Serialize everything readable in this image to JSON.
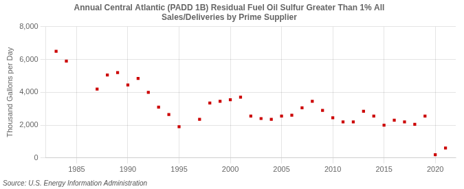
{
  "chart_data": {
    "type": "scatter",
    "title": "Annual Central Atlantic (PADD 1B) Residual Fuel Oil Sulfur Greater Than 1% All\nSales/Deliveries by Prime Supplier",
    "ylabel": "Thousand Gallons per Day",
    "annotation": "Source: U.S. Energy Information Administration",
    "x": [
      1983,
      1984,
      1987,
      1988,
      1989,
      1990,
      1991,
      1992,
      1993,
      1994,
      1995,
      1997,
      1998,
      1999,
      2000,
      2001,
      2002,
      2003,
      2004,
      2005,
      2006,
      2007,
      2008,
      2009,
      2010,
      2011,
      2012,
      2013,
      2014,
      2015,
      2016,
      2017,
      2018,
      2019,
      2020,
      2021
    ],
    "values": [
      6500,
      5900,
      4200,
      5050,
      5200,
      4450,
      4850,
      4000,
      3100,
      2650,
      1900,
      2350,
      3350,
      3450,
      3550,
      3700,
      2550,
      2400,
      2350,
      2550,
      2600,
      3050,
      3450,
      2900,
      2450,
      2200,
      2200,
      2850,
      2550,
      2000,
      2300,
      2200,
      2050,
      2550,
      200,
      600
    ],
    "color": "#cc0000",
    "marker": "square",
    "xlim": [
      1982,
      2022
    ],
    "xticks": [
      1985,
      1990,
      1995,
      2000,
      2005,
      2010,
      2015,
      2020
    ],
    "ylim": [
      0,
      8000
    ],
    "yticks": [
      0,
      {
        "value": 2000,
        "label": "2,000"
      },
      {
        "value": 4000,
        "label": "4,000"
      },
      {
        "value": 6000,
        "label": "6,000"
      },
      {
        "value": 8000,
        "label": "8,000"
      }
    ],
    "grid": true
  }
}
